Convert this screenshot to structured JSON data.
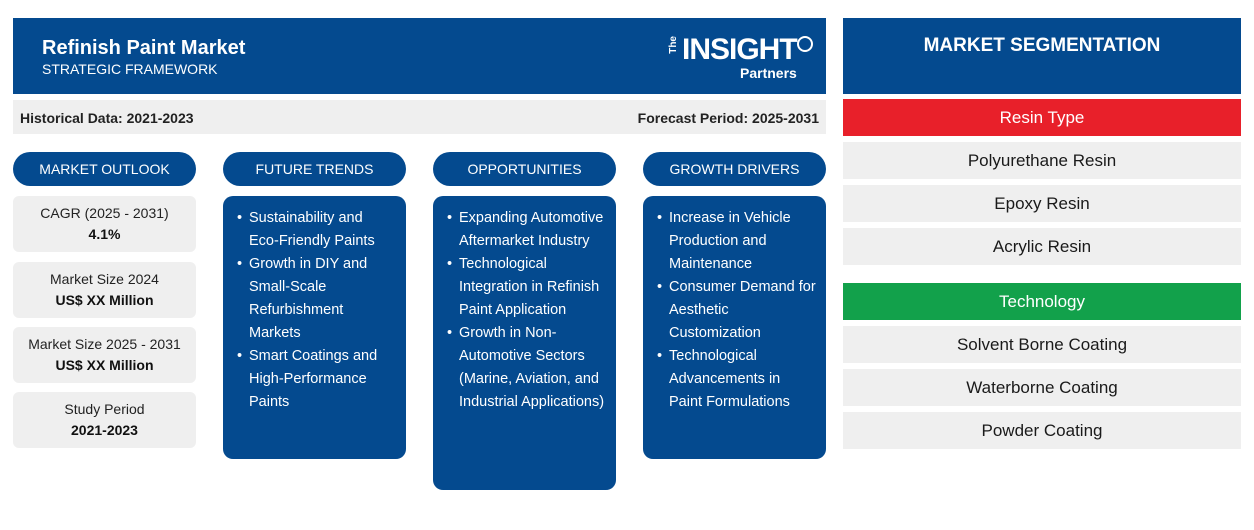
{
  "header": {
    "title": "Refinish Paint Market",
    "subtitle": "STRATEGIC FRAMEWORK",
    "logo": {
      "the": "The",
      "insight": "INSIGHT",
      "partners": "Partners"
    }
  },
  "period": {
    "historical": "Historical Data: 2021-2023",
    "forecast": "Forecast Period: 2025-2031"
  },
  "columns": {
    "outlook": "MARKET OUTLOOK",
    "trends": "FUTURE TRENDS",
    "opportunities": "OPPORTUNITIES",
    "drivers": "GROWTH DRIVERS"
  },
  "outlook": [
    {
      "label": "CAGR (2025 - 2031)",
      "value": "4.1%"
    },
    {
      "label": "Market Size 2024",
      "value": "US$ XX Million"
    },
    {
      "label": "Market Size 2025 - 2031",
      "value": "US$ XX Million"
    },
    {
      "label": "Study Period",
      "value": "2021-2023"
    }
  ],
  "trends": [
    "Sustainability and Eco-Friendly Paints",
    "Growth in DIY and Small-Scale Refurbishment Markets",
    "Smart Coatings and High-Performance Paints"
  ],
  "opportunities": [
    "Expanding Automotive Aftermarket Industry",
    "Technological Integration in Refinish Paint Application",
    "Growth in Non-Automotive Sectors (Marine, Aviation, and Industrial Applications)"
  ],
  "drivers": [
    "Increase in Vehicle Production and Maintenance",
    "Consumer Demand for Aesthetic Customization",
    "Technological Advancements in Paint Formulations"
  ],
  "segmentation": {
    "title": "MARKET SEGMENTATION",
    "groups": [
      {
        "name": "Resin Type",
        "color": "#e8202a",
        "items": [
          "Polyurethane Resin",
          "Epoxy Resin",
          "Acrylic Resin"
        ]
      },
      {
        "name": "Technology",
        "color": "#12a14b",
        "items": [
          "Solvent Borne Coating",
          "Waterborne Coating",
          "Powder Coating"
        ]
      }
    ]
  },
  "colors": {
    "brand": "#044a8f",
    "panel": "#efefef"
  }
}
